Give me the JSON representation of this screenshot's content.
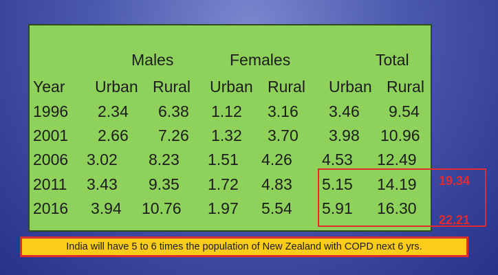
{
  "table": {
    "group_headers": {
      "males": "Males",
      "females": "Females",
      "total": "Total"
    },
    "columns": [
      "Year",
      "Urban",
      "Rural",
      "Urban",
      "Rural",
      "Urban",
      "Rural"
    ],
    "rows": [
      [
        "1996",
        "2.34",
        "6.38",
        "1.12",
        "3.16",
        "3.46",
        "9.54"
      ],
      [
        "2001",
        "2.66",
        "7.26",
        "1.32",
        "3.70",
        "3.98",
        "10.96"
      ],
      [
        "2006",
        "3.02",
        "8.23",
        "1.51",
        "4.26",
        "4.53",
        "12.49"
      ],
      [
        "2011",
        "3.43",
        "9.35",
        "1.72",
        "4.83",
        "5.15",
        "14.19"
      ],
      [
        "2016",
        "3.94",
        "10.76",
        "1.97",
        "5.54",
        "5.91",
        "16.30"
      ]
    ]
  },
  "highlight_totals": [
    "19.34",
    "22.21"
  ],
  "note": "India will have 5 to 6 times the population of New Zealand with COPD next 6 yrs.",
  "colors": {
    "background": "#3c4aa3",
    "panel": "#8ed25c",
    "highlight": "#e22b2b",
    "note_bg": "#fbcc1a"
  }
}
